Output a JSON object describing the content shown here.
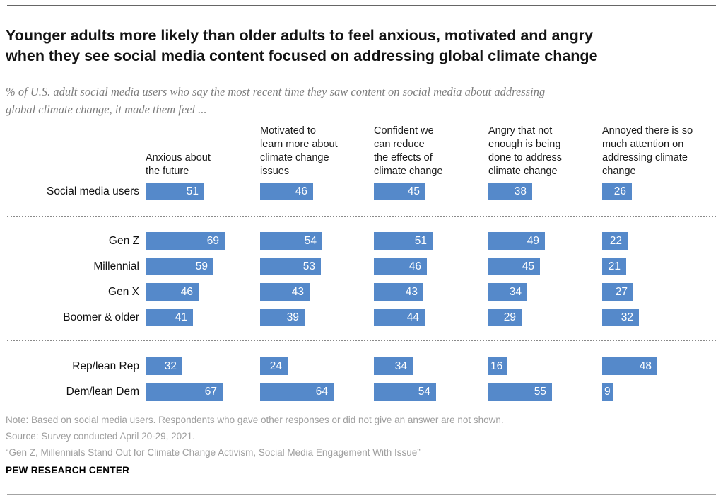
{
  "header": {
    "title_lines": [
      "Younger adults more likely than older adults to feel anxious, motivated and angry",
      "when they see social media content focused on addressing global climate change"
    ],
    "subtitle_lines": [
      "% of U.S. adult social media users who say the most recent time they saw content on social media about addressing",
      "global climate change, it made them feel ..."
    ]
  },
  "chart_data": {
    "type": "bar",
    "orientation": "horizontal",
    "unit": "percent",
    "bar_color": "#5589ca",
    "value_label_color": "#ffffff",
    "axis_hidden": true,
    "columns": [
      {
        "label": "Anxious about the future",
        "label_lines": [
          "Anxious about",
          "the future"
        ]
      },
      {
        "label": "Motivated to learn more about climate change issues",
        "label_lines": [
          "Motivated to",
          "learn more about",
          "climate change",
          "issues"
        ]
      },
      {
        "label": "Confident we can reduce the effects of climate change",
        "label_lines": [
          "Confident we",
          "can reduce",
          "the effects of",
          "climate change"
        ]
      },
      {
        "label": "Angry that not enough is being done to address climate change",
        "label_lines": [
          "Angry that not",
          "enough is being",
          "done to address",
          "climate change"
        ]
      },
      {
        "label": "Annoyed there is so much attention on addressing climate change",
        "label_lines": [
          "Annoyed there is so",
          "much attention on",
          "addressing climate",
          "change"
        ]
      }
    ],
    "groups": [
      {
        "rows": [
          {
            "label": "Social media users",
            "values": [
              51,
              46,
              45,
              38,
              26
            ]
          }
        ]
      },
      {
        "rows": [
          {
            "label": "Gen Z",
            "values": [
              69,
              54,
              51,
              49,
              22
            ]
          },
          {
            "label": "Millennial",
            "values": [
              59,
              53,
              46,
              45,
              21
            ]
          },
          {
            "label": "Gen X",
            "values": [
              46,
              43,
              43,
              34,
              27
            ]
          },
          {
            "label": "Boomer & older",
            "values": [
              41,
              39,
              44,
              29,
              32
            ]
          }
        ]
      },
      {
        "rows": [
          {
            "label": "Rep/lean Rep",
            "values": [
              32,
              24,
              34,
              16,
              48
            ]
          },
          {
            "label": "Dem/lean Dem",
            "values": [
              67,
              64,
              54,
              55,
              9
            ]
          }
        ]
      }
    ]
  },
  "footer": {
    "note": "Note: Based on social media users. Respondents who gave other responses or did not give an answer are not shown.",
    "source": "Source: Survey conducted April 20-29, 2021.",
    "quote": "“Gen Z, Millennials Stand Out for Climate Change Activism, Social Media Engagement With Issue”",
    "brand": "PEW RESEARCH CENTER"
  }
}
